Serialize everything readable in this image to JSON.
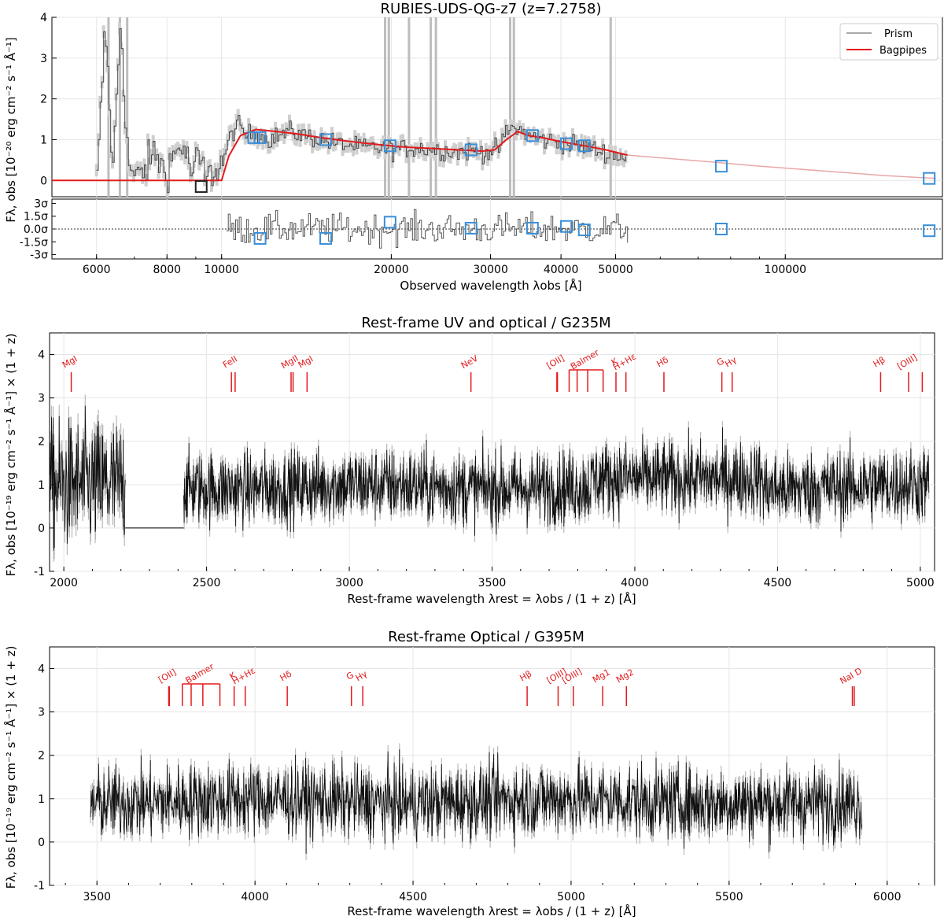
{
  "chart_data": [
    {
      "type": "line",
      "id": "prism",
      "title": "RUBIES-UDS-QG-z7 (z=7.2758)",
      "xlabel": "Observed wavelength λobs [Å]",
      "ylabel": "Fλ, obs [10⁻²⁰ erg cm⁻² s⁻¹ Å⁻¹]",
      "xscale": "log",
      "xlim": [
        5000,
        190000
      ],
      "ylim": [
        -0.4,
        4
      ],
      "xticks": [
        6000,
        8000,
        10000,
        20000,
        30000,
        40000,
        50000,
        100000
      ],
      "xtick_labels": [
        "6000",
        "8000",
        "10000",
        "20000",
        "30000",
        "40000",
        "50000",
        "100000"
      ],
      "yticks": [
        0,
        1,
        2,
        3,
        4
      ],
      "legend": [
        "Prism",
        "Bagpipes"
      ],
      "legend_position": "top-right",
      "series": [
        {
          "name": "Prism",
          "color": "#555555",
          "points": [
            [
              6000,
              0.0
            ],
            [
              6200,
              3.8
            ],
            [
              6400,
              0.2
            ],
            [
              6600,
              4.0
            ],
            [
              6800,
              0.5
            ],
            [
              7000,
              0.0
            ],
            [
              7300,
              0.3
            ],
            [
              7600,
              0.7
            ],
            [
              7900,
              0.2
            ],
            [
              8200,
              0.6
            ],
            [
              8500,
              0.9
            ],
            [
              8800,
              0.2
            ],
            [
              9100,
              0.5
            ],
            [
              9400,
              0.0
            ],
            [
              9700,
              0.3
            ],
            [
              10000,
              0.4
            ],
            [
              10300,
              1.0
            ],
            [
              10600,
              1.4
            ],
            [
              11000,
              1.1
            ],
            [
              11500,
              1.2
            ],
            [
              12000,
              1.0
            ],
            [
              12600,
              1.1
            ],
            [
              13200,
              1.2
            ],
            [
              14000,
              1.1
            ],
            [
              15000,
              1.0
            ],
            [
              16000,
              0.9
            ],
            [
              17000,
              0.85
            ],
            [
              18000,
              0.8
            ],
            [
              19000,
              0.8
            ],
            [
              20000,
              0.75
            ],
            [
              22000,
              0.8
            ],
            [
              24000,
              0.75
            ],
            [
              26000,
              0.7
            ],
            [
              28000,
              0.72
            ],
            [
              30000,
              0.7
            ],
            [
              31000,
              0.8
            ],
            [
              32000,
              1.2
            ],
            [
              33000,
              1.3
            ],
            [
              34000,
              1.2
            ],
            [
              35000,
              1.1
            ],
            [
              37000,
              1.0
            ],
            [
              39000,
              0.95
            ],
            [
              41000,
              0.9
            ],
            [
              43000,
              0.85
            ],
            [
              45000,
              0.8
            ],
            [
              47000,
              0.7
            ],
            [
              49000,
              0.65
            ],
            [
              51000,
              0.6
            ],
            [
              52500,
              0.5
            ]
          ]
        },
        {
          "name": "Bagpipes",
          "color": "#e31a1c",
          "points": [
            [
              5000,
              0.0
            ],
            [
              10000,
              0.0
            ],
            [
              10300,
              0.6
            ],
            [
              10800,
              1.1
            ],
            [
              11500,
              1.25
            ],
            [
              12500,
              1.2
            ],
            [
              13500,
              1.15
            ],
            [
              15000,
              1.05
            ],
            [
              17000,
              0.95
            ],
            [
              19000,
              0.88
            ],
            [
              21000,
              0.82
            ],
            [
              24000,
              0.78
            ],
            [
              27000,
              0.74
            ],
            [
              29000,
              0.72
            ],
            [
              30500,
              0.75
            ],
            [
              32000,
              1.0
            ],
            [
              33500,
              1.2
            ],
            [
              35000,
              1.1
            ],
            [
              37000,
              1.05
            ],
            [
              40000,
              0.95
            ],
            [
              44000,
              0.85
            ],
            [
              48000,
              0.75
            ],
            [
              52500,
              0.62
            ]
          ]
        },
        {
          "name": "Bagpipes extrapolation",
          "color": "#e8a8a8",
          "points": [
            [
              52500,
              0.62
            ],
            [
              70000,
              0.48
            ],
            [
              90000,
              0.35
            ],
            [
              120000,
              0.22
            ],
            [
              150000,
              0.12
            ],
            [
              185000,
              0.05
            ]
          ]
        }
      ],
      "photometry": [
        {
          "x": 9200,
          "y": -0.15,
          "color": "#222222"
        },
        {
          "x": 11400,
          "y": 1.05
        },
        {
          "x": 11700,
          "y": 1.05
        },
        {
          "x": 15300,
          "y": 1.0
        },
        {
          "x": 19900,
          "y": 0.85
        },
        {
          "x": 27700,
          "y": 0.75
        },
        {
          "x": 35600,
          "y": 1.1
        },
        {
          "x": 40900,
          "y": 0.9
        },
        {
          "x": 44000,
          "y": 0.85
        },
        {
          "x": 77000,
          "y": 0.35
        },
        {
          "x": 180000,
          "y": 0.05
        }
      ],
      "vlines": [
        6300,
        6600,
        6800,
        19500,
        19800,
        21500,
        23500,
        24000,
        32500,
        33000,
        49000
      ],
      "residuals": {
        "ylabels": [
          "3σ",
          "1.5σ",
          "0.0σ",
          "-1.5σ",
          "-3σ"
        ],
        "yticks": [
          3,
          1.5,
          0,
          -1.5,
          -3
        ],
        "ylim": [
          -3.5,
          3.5
        ],
        "squares": [
          {
            "x": 11700,
            "y": -1.1
          },
          {
            "x": 15300,
            "y": -1.1
          },
          {
            "x": 19900,
            "y": 0.8
          },
          {
            "x": 27700,
            "y": 0.1
          },
          {
            "x": 35600,
            "y": 0.1
          },
          {
            "x": 40900,
            "y": 0.3
          },
          {
            "x": 44000,
            "y": -0.1
          },
          {
            "x": 77000,
            "y": 0.0
          },
          {
            "x": 180000,
            "y": -0.2
          }
        ]
      }
    },
    {
      "type": "line",
      "id": "g235m",
      "title": "Rest-frame UV and optical / G235M",
      "xlabel": "Rest-frame wavelength λrest = λobs / (1 + z) [Å]",
      "ylabel": "Fλ, obs [10⁻¹⁹ erg cm⁻² s⁻¹ Å⁻¹] × (1 + z)",
      "xlim": [
        1950,
        5050
      ],
      "ylim": [
        -1,
        4.5
      ],
      "xticks": [
        2000,
        2500,
        3000,
        3500,
        4000,
        4500,
        5000
      ],
      "yticks": [
        -1,
        0,
        1,
        2,
        3,
        4
      ],
      "gaps": [
        [
          2215,
          2420
        ]
      ],
      "segments": [
        [
          1950,
          2215
        ],
        [
          2420,
          5030
        ]
      ],
      "lines": [
        {
          "label": "MgI",
          "x": [
            2026
          ]
        },
        {
          "label": "FeII",
          "x": [
            2587,
            2600
          ]
        },
        {
          "label": "MgII",
          "x": [
            2796,
            2803
          ]
        },
        {
          "label": "MgI",
          "x": [
            2852
          ]
        },
        {
          "label": "NeV",
          "x": [
            3426
          ]
        },
        {
          "label": "[OII]",
          "x": [
            3727,
            3729
          ]
        },
        {
          "label": "Balmer",
          "x": [
            3770,
            3798,
            3835,
            3889
          ],
          "bracket": true
        },
        {
          "label": "K",
          "x": [
            3934
          ]
        },
        {
          "label": "H+Hε",
          "x": [
            3969
          ]
        },
        {
          "label": "Hδ",
          "x": [
            4102
          ]
        },
        {
          "label": "G",
          "x": [
            4305
          ]
        },
        {
          "label": "Hγ",
          "x": [
            4341
          ]
        },
        {
          "label": "Hβ",
          "x": [
            4861
          ]
        },
        {
          "label": "[OIII]",
          "x": [
            4959,
            5007
          ]
        }
      ]
    },
    {
      "type": "line",
      "id": "g395m",
      "title": "Rest-frame Optical / G395M",
      "xlabel": "Rest-frame wavelength λrest = λobs / (1 + z) [Å]",
      "ylabel": "Fλ, obs [10⁻¹⁹ erg cm⁻² s⁻¹ Å⁻¹] × (1 + z)",
      "xlim": [
        3350,
        6150
      ],
      "ylim": [
        -1,
        4.5
      ],
      "xticks": [
        3500,
        4000,
        4500,
        5000,
        5500,
        6000
      ],
      "yticks": [
        -1,
        0,
        1,
        2,
        3,
        4
      ],
      "segments": [
        [
          3480,
          5920
        ]
      ],
      "lines": [
        {
          "label": "[OII]",
          "x": [
            3727,
            3729
          ]
        },
        {
          "label": "Balmer",
          "x": [
            3770,
            3798,
            3835,
            3889
          ],
          "bracket": true
        },
        {
          "label": "K",
          "x": [
            3934
          ]
        },
        {
          "label": "H+Hε",
          "x": [
            3969
          ]
        },
        {
          "label": "Hδ",
          "x": [
            4102
          ]
        },
        {
          "label": "G",
          "x": [
            4305
          ]
        },
        {
          "label": "Hγ",
          "x": [
            4341
          ]
        },
        {
          "label": "Hβ",
          "x": [
            4861
          ]
        },
        {
          "label": "[OIII]",
          "x": [
            4959
          ]
        },
        {
          "label": "[OIII]",
          "x": [
            5007
          ]
        },
        {
          "label": "Mg1",
          "x": [
            5100
          ]
        },
        {
          "label": "Mg2",
          "x": [
            5175
          ]
        },
        {
          "label": "NaI D",
          "x": [
            5890,
            5896
          ]
        }
      ]
    }
  ],
  "colors": {
    "spectrum": "#111111",
    "error": "#b8b8b8",
    "model": "#e31a1c",
    "photometry": "#3a8fd9",
    "lineMarker": "#e31a1c",
    "grid": "#e6e6e6"
  }
}
